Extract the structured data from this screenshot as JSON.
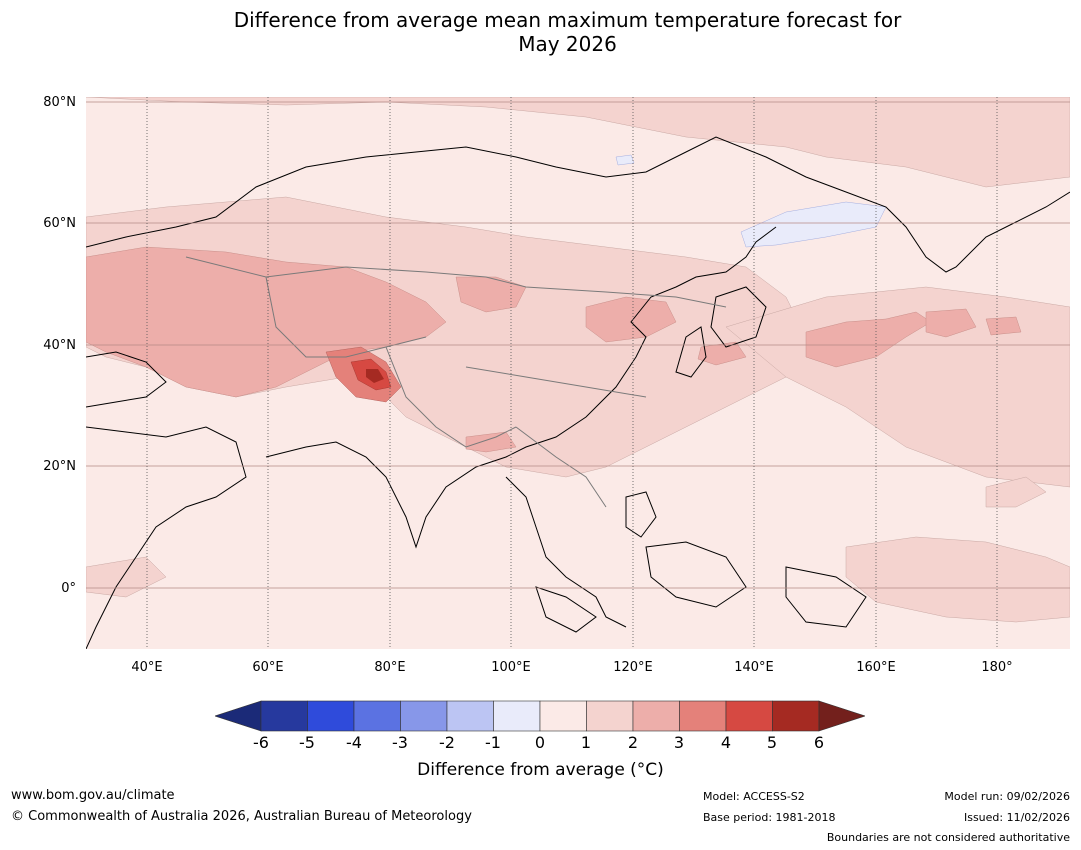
{
  "title": {
    "line1": "Difference from average mean maximum temperature forecast for",
    "line2": "May 2026"
  },
  "map": {
    "lat_labels": [
      "80°N",
      "60°N",
      "40°N",
      "20°N",
      "0°"
    ],
    "lon_labels": [
      "40°E",
      "60°E",
      "80°E",
      "100°E",
      "120°E",
      "140°E",
      "160°E",
      "180°"
    ],
    "lat_range": [
      -10,
      81
    ],
    "lon_range": [
      30,
      192
    ],
    "anomaly_hotspot": "Tibetan Plateau / Himalaya 5 to 6 °C",
    "colors": {
      "0_1": "#fbeae7",
      "1_2": "#f4d3cf",
      "2_3": "#edaeaa",
      "3_4": "#e4817a",
      "4_5": "#d64942",
      "5_6": "#a52a22",
      "-1_0": "#e9ebfa"
    }
  },
  "colorbar": {
    "ticks": [
      "-6",
      "-5",
      "-4",
      "-3",
      "-2",
      "-1",
      "0",
      "1",
      "2",
      "3",
      "4",
      "5",
      "6"
    ],
    "colors": [
      "#26399e",
      "#2f4bdb",
      "#5b72e2",
      "#8797e9",
      "#bcc5f3",
      "#e9ebfa",
      "#fbeae7",
      "#f4d3cf",
      "#edaeaa",
      "#e4817a",
      "#d64942",
      "#a52a22"
    ],
    "under_color": "#1b2a78",
    "over_color": "#73201c",
    "label": "Difference from average (°C)"
  },
  "footer": {
    "website": "www.bom.gov.au/climate",
    "copyright": "© Commonwealth of Australia 2026, Australian Bureau of Meteorology",
    "model": "Model: ACCESS-S2",
    "base_period": "Base period: 1981-2018",
    "model_run": "Model run: 09/02/2026",
    "issued": "Issued: 11/02/2026",
    "disclaimer": "Boundaries are not considered authoritative"
  }
}
